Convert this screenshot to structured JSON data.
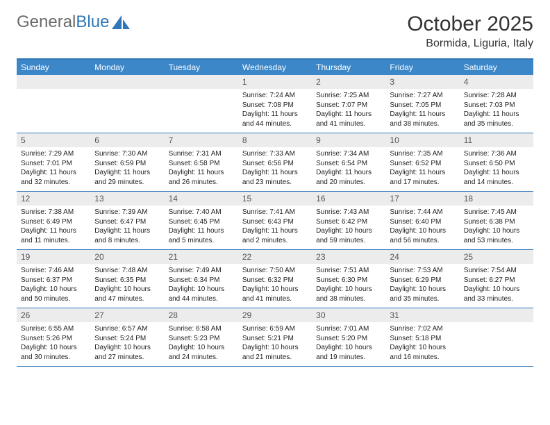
{
  "logo": {
    "text1": "General",
    "text2": "Blue"
  },
  "title": "October 2025",
  "location": "Bormida, Liguria, Italy",
  "colors": {
    "header_bg": "#3b87c8",
    "header_border": "#2e77b8",
    "daynum_bg": "#ececec",
    "text": "#222222",
    "logo_gray": "#6a6a6a",
    "logo_blue": "#2e77b8"
  },
  "day_names": [
    "Sunday",
    "Monday",
    "Tuesday",
    "Wednesday",
    "Thursday",
    "Friday",
    "Saturday"
  ],
  "weeks": [
    [
      {
        "day": "",
        "sunrise": "",
        "sunset": "",
        "daylight": ""
      },
      {
        "day": "",
        "sunrise": "",
        "sunset": "",
        "daylight": ""
      },
      {
        "day": "",
        "sunrise": "",
        "sunset": "",
        "daylight": ""
      },
      {
        "day": "1",
        "sunrise": "Sunrise: 7:24 AM",
        "sunset": "Sunset: 7:08 PM",
        "daylight": "Daylight: 11 hours and 44 minutes."
      },
      {
        "day": "2",
        "sunrise": "Sunrise: 7:25 AM",
        "sunset": "Sunset: 7:07 PM",
        "daylight": "Daylight: 11 hours and 41 minutes."
      },
      {
        "day": "3",
        "sunrise": "Sunrise: 7:27 AM",
        "sunset": "Sunset: 7:05 PM",
        "daylight": "Daylight: 11 hours and 38 minutes."
      },
      {
        "day": "4",
        "sunrise": "Sunrise: 7:28 AM",
        "sunset": "Sunset: 7:03 PM",
        "daylight": "Daylight: 11 hours and 35 minutes."
      }
    ],
    [
      {
        "day": "5",
        "sunrise": "Sunrise: 7:29 AM",
        "sunset": "Sunset: 7:01 PM",
        "daylight": "Daylight: 11 hours and 32 minutes."
      },
      {
        "day": "6",
        "sunrise": "Sunrise: 7:30 AM",
        "sunset": "Sunset: 6:59 PM",
        "daylight": "Daylight: 11 hours and 29 minutes."
      },
      {
        "day": "7",
        "sunrise": "Sunrise: 7:31 AM",
        "sunset": "Sunset: 6:58 PM",
        "daylight": "Daylight: 11 hours and 26 minutes."
      },
      {
        "day": "8",
        "sunrise": "Sunrise: 7:33 AM",
        "sunset": "Sunset: 6:56 PM",
        "daylight": "Daylight: 11 hours and 23 minutes."
      },
      {
        "day": "9",
        "sunrise": "Sunrise: 7:34 AM",
        "sunset": "Sunset: 6:54 PM",
        "daylight": "Daylight: 11 hours and 20 minutes."
      },
      {
        "day": "10",
        "sunrise": "Sunrise: 7:35 AM",
        "sunset": "Sunset: 6:52 PM",
        "daylight": "Daylight: 11 hours and 17 minutes."
      },
      {
        "day": "11",
        "sunrise": "Sunrise: 7:36 AM",
        "sunset": "Sunset: 6:50 PM",
        "daylight": "Daylight: 11 hours and 14 minutes."
      }
    ],
    [
      {
        "day": "12",
        "sunrise": "Sunrise: 7:38 AM",
        "sunset": "Sunset: 6:49 PM",
        "daylight": "Daylight: 11 hours and 11 minutes."
      },
      {
        "day": "13",
        "sunrise": "Sunrise: 7:39 AM",
        "sunset": "Sunset: 6:47 PM",
        "daylight": "Daylight: 11 hours and 8 minutes."
      },
      {
        "day": "14",
        "sunrise": "Sunrise: 7:40 AM",
        "sunset": "Sunset: 6:45 PM",
        "daylight": "Daylight: 11 hours and 5 minutes."
      },
      {
        "day": "15",
        "sunrise": "Sunrise: 7:41 AM",
        "sunset": "Sunset: 6:43 PM",
        "daylight": "Daylight: 11 hours and 2 minutes."
      },
      {
        "day": "16",
        "sunrise": "Sunrise: 7:43 AM",
        "sunset": "Sunset: 6:42 PM",
        "daylight": "Daylight: 10 hours and 59 minutes."
      },
      {
        "day": "17",
        "sunrise": "Sunrise: 7:44 AM",
        "sunset": "Sunset: 6:40 PM",
        "daylight": "Daylight: 10 hours and 56 minutes."
      },
      {
        "day": "18",
        "sunrise": "Sunrise: 7:45 AM",
        "sunset": "Sunset: 6:38 PM",
        "daylight": "Daylight: 10 hours and 53 minutes."
      }
    ],
    [
      {
        "day": "19",
        "sunrise": "Sunrise: 7:46 AM",
        "sunset": "Sunset: 6:37 PM",
        "daylight": "Daylight: 10 hours and 50 minutes."
      },
      {
        "day": "20",
        "sunrise": "Sunrise: 7:48 AM",
        "sunset": "Sunset: 6:35 PM",
        "daylight": "Daylight: 10 hours and 47 minutes."
      },
      {
        "day": "21",
        "sunrise": "Sunrise: 7:49 AM",
        "sunset": "Sunset: 6:34 PM",
        "daylight": "Daylight: 10 hours and 44 minutes."
      },
      {
        "day": "22",
        "sunrise": "Sunrise: 7:50 AM",
        "sunset": "Sunset: 6:32 PM",
        "daylight": "Daylight: 10 hours and 41 minutes."
      },
      {
        "day": "23",
        "sunrise": "Sunrise: 7:51 AM",
        "sunset": "Sunset: 6:30 PM",
        "daylight": "Daylight: 10 hours and 38 minutes."
      },
      {
        "day": "24",
        "sunrise": "Sunrise: 7:53 AM",
        "sunset": "Sunset: 6:29 PM",
        "daylight": "Daylight: 10 hours and 35 minutes."
      },
      {
        "day": "25",
        "sunrise": "Sunrise: 7:54 AM",
        "sunset": "Sunset: 6:27 PM",
        "daylight": "Daylight: 10 hours and 33 minutes."
      }
    ],
    [
      {
        "day": "26",
        "sunrise": "Sunrise: 6:55 AM",
        "sunset": "Sunset: 5:26 PM",
        "daylight": "Daylight: 10 hours and 30 minutes."
      },
      {
        "day": "27",
        "sunrise": "Sunrise: 6:57 AM",
        "sunset": "Sunset: 5:24 PM",
        "daylight": "Daylight: 10 hours and 27 minutes."
      },
      {
        "day": "28",
        "sunrise": "Sunrise: 6:58 AM",
        "sunset": "Sunset: 5:23 PM",
        "daylight": "Daylight: 10 hours and 24 minutes."
      },
      {
        "day": "29",
        "sunrise": "Sunrise: 6:59 AM",
        "sunset": "Sunset: 5:21 PM",
        "daylight": "Daylight: 10 hours and 21 minutes."
      },
      {
        "day": "30",
        "sunrise": "Sunrise: 7:01 AM",
        "sunset": "Sunset: 5:20 PM",
        "daylight": "Daylight: 10 hours and 19 minutes."
      },
      {
        "day": "31",
        "sunrise": "Sunrise: 7:02 AM",
        "sunset": "Sunset: 5:18 PM",
        "daylight": "Daylight: 10 hours and 16 minutes."
      },
      {
        "day": "",
        "sunrise": "",
        "sunset": "",
        "daylight": ""
      }
    ]
  ]
}
